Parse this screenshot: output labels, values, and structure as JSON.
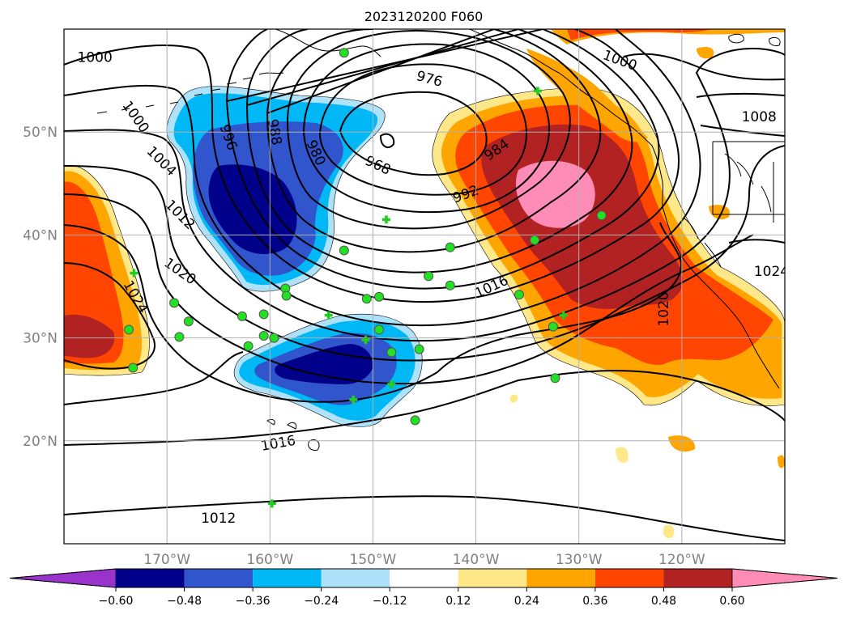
{
  "map": {
    "title": "2023120200 F060",
    "lat_labels": [
      {
        "text": "50°N",
        "lat": 50
      },
      {
        "text": "40°N",
        "lat": 40
      },
      {
        "text": "30°N",
        "lat": 30
      },
      {
        "text": "20°N",
        "lat": 20
      }
    ],
    "lon_labels": [
      {
        "text": "170°W",
        "lon": -170
      },
      {
        "text": "160°W",
        "lon": -160
      },
      {
        "text": "150°W",
        "lon": -150
      },
      {
        "text": "140°W",
        "lon": -140
      },
      {
        "text": "130°W",
        "lon": -130
      },
      {
        "text": "120°W",
        "lon": -120
      }
    ],
    "extent": {
      "lon_min": -180,
      "lon_max": -110,
      "lat_min": 10,
      "lat_max": 60
    },
    "grid": true,
    "contour_labels": [
      {
        "text": "1000",
        "lon": -177,
        "lat": 57.3,
        "angle": 0
      },
      {
        "text": "1000",
        "lon": -173,
        "lat": 51.5,
        "angle": 55
      },
      {
        "text": "996",
        "lon": -164,
        "lat": 49.5,
        "angle": 70
      },
      {
        "text": "988",
        "lon": -159.5,
        "lat": 50,
        "angle": 80
      },
      {
        "text": "980",
        "lon": -155.5,
        "lat": 48,
        "angle": 65
      },
      {
        "text": "968",
        "lon": -149.5,
        "lat": 46.8,
        "angle": 25
      },
      {
        "text": "976",
        "lon": -144.5,
        "lat": 55.2,
        "angle": 15
      },
      {
        "text": "1004",
        "lon": -170.5,
        "lat": 47.2,
        "angle": 45
      },
      {
        "text": "1012",
        "lon": -168.7,
        "lat": 42,
        "angle": 45
      },
      {
        "text": "1020",
        "lon": -168.7,
        "lat": 36.5,
        "angle": 35
      },
      {
        "text": "1024",
        "lon": -173,
        "lat": 34,
        "angle": 60
      },
      {
        "text": "984",
        "lon": -138,
        "lat": 48.3,
        "angle": -35
      },
      {
        "text": "992",
        "lon": -141,
        "lat": 44,
        "angle": -20
      },
      {
        "text": "1016",
        "lon": -138.5,
        "lat": 35,
        "angle": -25
      },
      {
        "text": "1016",
        "lon": -159.2,
        "lat": 19.8,
        "angle": -10
      },
      {
        "text": "1012",
        "lon": -165,
        "lat": 12.5,
        "angle": 0
      },
      {
        "text": "1000",
        "lon": -126,
        "lat": 57,
        "angle": 20
      },
      {
        "text": "1008",
        "lon": -112.5,
        "lat": 51.5,
        "angle": 0
      },
      {
        "text": "1024",
        "lon": -111.3,
        "lat": 36.5,
        "angle": 0
      },
      {
        "text": "1020",
        "lon": -121.8,
        "lat": 32.8,
        "angle": -90
      }
    ],
    "station_points": [
      {
        "lon": -152.8,
        "lat": 57.7,
        "marker": "circle"
      },
      {
        "lon": -134,
        "lat": 54,
        "marker": "plus"
      },
      {
        "lon": -148.7,
        "lat": 41.5,
        "marker": "plus"
      },
      {
        "lon": -152.8,
        "lat": 38.5,
        "marker": "circle"
      },
      {
        "lon": -142.5,
        "lat": 38.8,
        "marker": "circle"
      },
      {
        "lon": -134.3,
        "lat": 39.5,
        "marker": "circle"
      },
      {
        "lon": -127.8,
        "lat": 41.9,
        "marker": "circle"
      },
      {
        "lon": -144.6,
        "lat": 36,
        "marker": "circle"
      },
      {
        "lon": -142.5,
        "lat": 35.1,
        "marker": "circle"
      },
      {
        "lon": -135.8,
        "lat": 34.2,
        "marker": "circle"
      },
      {
        "lon": -173.2,
        "lat": 36.3,
        "marker": "plus"
      },
      {
        "lon": -169.3,
        "lat": 33.4,
        "marker": "circle"
      },
      {
        "lon": -167.9,
        "lat": 31.6,
        "marker": "circle"
      },
      {
        "lon": -173.7,
        "lat": 30.8,
        "marker": "circle"
      },
      {
        "lon": -168.8,
        "lat": 30.1,
        "marker": "circle"
      },
      {
        "lon": -173.3,
        "lat": 27.1,
        "marker": "circle"
      },
      {
        "lon": -158.5,
        "lat": 34.8,
        "marker": "circle"
      },
      {
        "lon": -158.4,
        "lat": 34.1,
        "marker": "circle"
      },
      {
        "lon": -154.3,
        "lat": 32.2,
        "marker": "plus"
      },
      {
        "lon": -162.7,
        "lat": 32.1,
        "marker": "circle"
      },
      {
        "lon": -160.6,
        "lat": 32.3,
        "marker": "circle"
      },
      {
        "lon": -150.6,
        "lat": 33.8,
        "marker": "circle"
      },
      {
        "lon": -149.4,
        "lat": 34,
        "marker": "circle"
      },
      {
        "lon": -160.6,
        "lat": 30.2,
        "marker": "circle"
      },
      {
        "lon": -159.6,
        "lat": 30,
        "marker": "circle"
      },
      {
        "lon": -162.1,
        "lat": 29.2,
        "marker": "circle"
      },
      {
        "lon": -149.4,
        "lat": 30.8,
        "marker": "circle"
      },
      {
        "lon": -150.7,
        "lat": 29.8,
        "marker": "plus"
      },
      {
        "lon": -148.2,
        "lat": 28.6,
        "marker": "circle"
      },
      {
        "lon": -145.5,
        "lat": 28.9,
        "marker": "circle"
      },
      {
        "lon": -148.2,
        "lat": 25.5,
        "marker": "plus"
      },
      {
        "lon": -151.9,
        "lat": 24,
        "marker": "plus"
      },
      {
        "lon": -145.9,
        "lat": 22,
        "marker": "circle"
      },
      {
        "lon": -132.5,
        "lat": 31.1,
        "marker": "circle"
      },
      {
        "lon": -131.5,
        "lat": 32.2,
        "marker": "plus"
      },
      {
        "lon": -132.3,
        "lat": 26.1,
        "marker": "circle"
      },
      {
        "lon": -159.8,
        "lat": 13.9,
        "marker": "plus"
      }
    ]
  },
  "colorbar": {
    "ticks": [
      "−0.60",
      "−0.48",
      "−0.36",
      "−0.24",
      "−0.12",
      "0.12",
      "0.24",
      "0.36",
      "0.48",
      "0.60"
    ],
    "colors": [
      "#9933cc",
      "#00008b",
      "#3155cc",
      "#00b8f5",
      "#aee2fb",
      "#ffffff",
      "#ffe88a",
      "#ffa500",
      "#ff4500",
      "#b22222",
      "#ff8cb6"
    ],
    "extend": "both"
  }
}
